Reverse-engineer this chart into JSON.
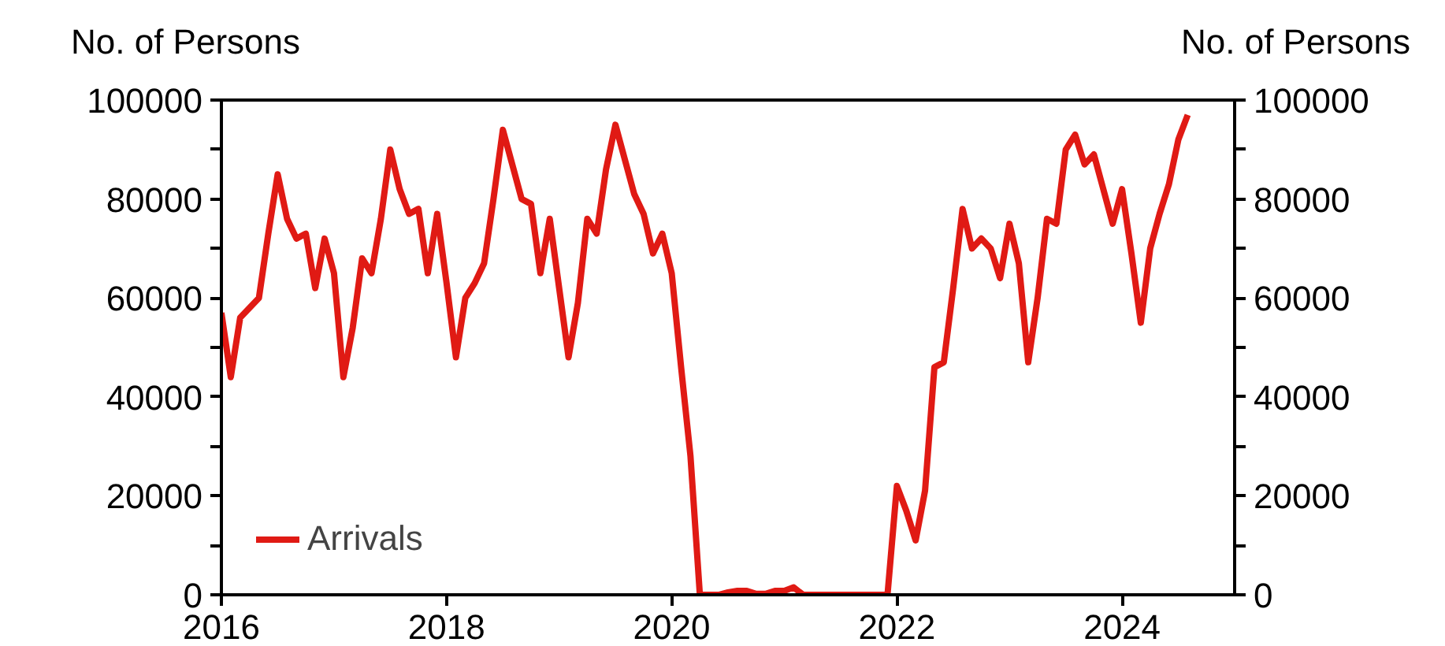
{
  "chart_data": {
    "type": "line",
    "ylabel": "No. of Persons",
    "y2label": "No. of Persons",
    "x": [
      "2016-01",
      "2016-02",
      "2016-03",
      "2016-04",
      "2016-05",
      "2016-06",
      "2016-07",
      "2016-08",
      "2016-09",
      "2016-10",
      "2016-11",
      "2016-12",
      "2017-01",
      "2017-02",
      "2017-03",
      "2017-04",
      "2017-05",
      "2017-06",
      "2017-07",
      "2017-08",
      "2017-09",
      "2017-10",
      "2017-11",
      "2017-12",
      "2018-01",
      "2018-02",
      "2018-03",
      "2018-04",
      "2018-05",
      "2018-06",
      "2018-07",
      "2018-08",
      "2018-09",
      "2018-10",
      "2018-11",
      "2018-12",
      "2019-01",
      "2019-02",
      "2019-03",
      "2019-04",
      "2019-05",
      "2019-06",
      "2019-07",
      "2019-08",
      "2019-09",
      "2019-10",
      "2019-11",
      "2019-12",
      "2020-01",
      "2020-02",
      "2020-03",
      "2020-04",
      "2020-05",
      "2020-06",
      "2020-07",
      "2020-08",
      "2020-09",
      "2020-10",
      "2020-11",
      "2020-12",
      "2021-01",
      "2021-02",
      "2021-03",
      "2021-04",
      "2021-05",
      "2021-06",
      "2021-07",
      "2021-08",
      "2021-09",
      "2021-10",
      "2021-11",
      "2021-12",
      "2022-01",
      "2022-02",
      "2022-03",
      "2022-04",
      "2022-05",
      "2022-06",
      "2022-07",
      "2022-08",
      "2022-09",
      "2022-10",
      "2022-11",
      "2022-12",
      "2023-01",
      "2023-02",
      "2023-03",
      "2023-04",
      "2023-05",
      "2023-06",
      "2023-07",
      "2023-08",
      "2023-09",
      "2023-10",
      "2023-11",
      "2023-12",
      "2024-01",
      "2024-02",
      "2024-03",
      "2024-04",
      "2024-05",
      "2024-06",
      "2024-07",
      "2024-08"
    ],
    "series": [
      {
        "name": "Arrivals",
        "color": "#e01a14",
        "values": [
          57000,
          44000,
          56000,
          58000,
          60000,
          73000,
          85000,
          76000,
          72000,
          73000,
          62000,
          72000,
          65000,
          44000,
          54000,
          68000,
          65000,
          76000,
          90000,
          82000,
          77000,
          78000,
          65000,
          77000,
          63000,
          48000,
          60000,
          63000,
          67000,
          80000,
          94000,
          87000,
          80000,
          79000,
          65000,
          76000,
          62000,
          48000,
          59000,
          76000,
          73000,
          86000,
          95000,
          88000,
          81000,
          77000,
          69000,
          73000,
          65000,
          46000,
          28000,
          0,
          0,
          0,
          500,
          800,
          800,
          200,
          200,
          800,
          800,
          1500,
          0,
          0,
          0,
          0,
          0,
          0,
          0,
          0,
          0,
          0,
          22000,
          17000,
          11000,
          21000,
          46000,
          47000,
          62000,
          78000,
          70000,
          72000,
          70000,
          64000,
          75000,
          67000,
          47000,
          60000,
          76000,
          75000,
          90000,
          93000,
          87000,
          89000,
          82000,
          75000,
          82000,
          69000,
          55000,
          70000,
          77000,
          83000,
          92000,
          97000
        ]
      }
    ],
    "xlim": [
      "2016",
      "2025"
    ],
    "xticks": [
      "2016",
      "2018",
      "2020",
      "2022",
      "2024"
    ],
    "ylim": [
      0,
      100000
    ],
    "yticks": [
      0,
      {
        "value": 10000,
        "label": null
      },
      20000,
      {
        "value": 30000,
        "label": null
      },
      40000,
      {
        "value": 50000,
        "label": null
      },
      60000,
      {
        "value": 70000,
        "label": null
      },
      80000,
      {
        "value": 90000,
        "label": null
      },
      100000
    ],
    "y2lim": [
      0,
      100000
    ],
    "y2ticks": [
      0,
      {
        "value": 10000,
        "label": null
      },
      20000,
      {
        "value": 30000,
        "label": null
      },
      40000,
      {
        "value": 50000,
        "label": null
      },
      60000,
      {
        "value": 70000,
        "label": null
      },
      80000,
      {
        "value": 90000,
        "label": null
      },
      100000
    ],
    "grid": false,
    "legend": "bottom left",
    "marker": "none",
    "line_style": "solid"
  }
}
